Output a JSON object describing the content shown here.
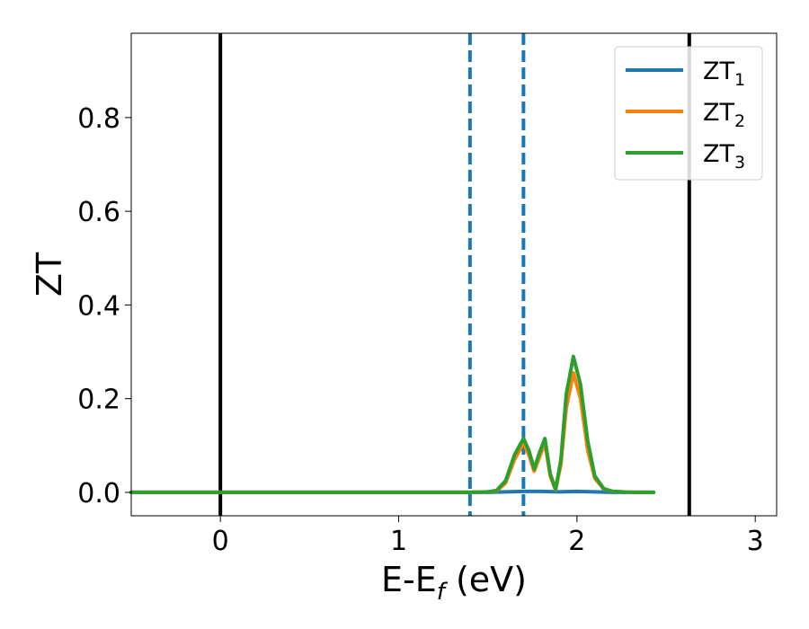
{
  "chart_data": {
    "type": "line",
    "xlabel": "E-E",
    "xlabel_sub": "f",
    "xlabel_unit": " (eV)",
    "ylabel": "ZT",
    "xlim": [
      -0.5,
      3.12
    ],
    "ylim": [
      -0.05,
      0.98
    ],
    "xticks": [
      0,
      1,
      2,
      3
    ],
    "yticks": [
      0.0,
      0.2,
      0.4,
      0.6,
      0.8
    ],
    "xtick_labels": [
      "0",
      "1",
      "2",
      "3"
    ],
    "ytick_labels": [
      "0.0",
      "0.2",
      "0.4",
      "0.6",
      "0.8"
    ],
    "grid": false,
    "legend_position": "top-right",
    "vlines": [
      {
        "x": 0.0,
        "style": "solid",
        "color": "#000000"
      },
      {
        "x": 2.63,
        "style": "solid",
        "color": "#000000"
      },
      {
        "x": 1.4,
        "style": "dashed",
        "color": "#1f77b4"
      },
      {
        "x": 1.7,
        "style": "dashed",
        "color": "#1f77b4"
      }
    ],
    "series": [
      {
        "name": "ZT",
        "name_sub": "1",
        "color": "#1f77b4",
        "x": [
          -0.5,
          0.0,
          1.0,
          1.4,
          1.5,
          1.6,
          1.7,
          1.8,
          1.9,
          2.0,
          2.1,
          2.2,
          2.3,
          2.43
        ],
        "y": [
          0,
          0,
          0,
          0,
          0,
          0.001,
          0.002,
          0.002,
          0.001,
          0.002,
          0.001,
          0.0,
          0,
          0
        ]
      },
      {
        "name": "ZT",
        "name_sub": "2",
        "color": "#ff7f0e",
        "x": [
          -0.5,
          0.0,
          1.0,
          1.4,
          1.5,
          1.55,
          1.6,
          1.65,
          1.7,
          1.73,
          1.76,
          1.79,
          1.82,
          1.85,
          1.88,
          1.91,
          1.94,
          1.98,
          2.02,
          2.06,
          2.1,
          2.15,
          2.2,
          2.3,
          2.43
        ],
        "y": [
          0,
          0,
          0,
          0,
          0.001,
          0.003,
          0.02,
          0.07,
          0.105,
          0.08,
          0.045,
          0.075,
          0.105,
          0.035,
          0.005,
          0.06,
          0.18,
          0.255,
          0.2,
          0.09,
          0.03,
          0.007,
          0.002,
          0,
          0
        ]
      },
      {
        "name": "ZT",
        "name_sub": "3",
        "color": "#2ca02c",
        "x": [
          -0.5,
          0.0,
          1.0,
          1.4,
          1.5,
          1.55,
          1.6,
          1.65,
          1.7,
          1.73,
          1.76,
          1.79,
          1.82,
          1.85,
          1.88,
          1.91,
          1.94,
          1.98,
          2.02,
          2.06,
          2.1,
          2.15,
          2.2,
          2.3,
          2.43
        ],
        "y": [
          0,
          0,
          0,
          0,
          0.001,
          0.004,
          0.025,
          0.08,
          0.115,
          0.09,
          0.05,
          0.085,
          0.115,
          0.04,
          0.006,
          0.07,
          0.21,
          0.29,
          0.23,
          0.11,
          0.035,
          0.008,
          0.002,
          0,
          0
        ]
      }
    ]
  }
}
